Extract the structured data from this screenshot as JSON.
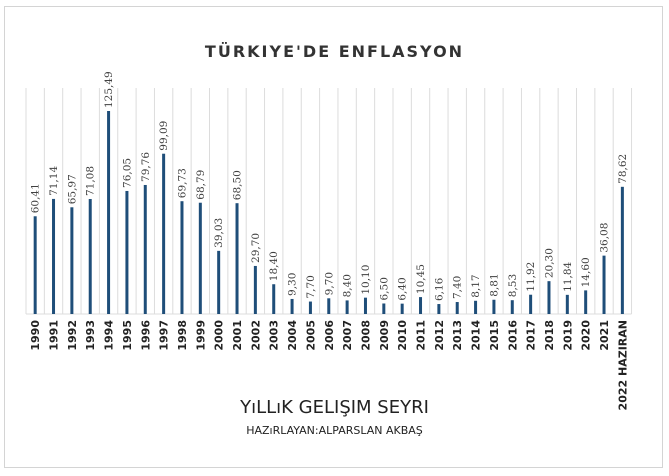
{
  "chart_data": {
    "type": "bar",
    "title": "TÜRKIYE'DE ENFLASYON",
    "categories": [
      "1990",
      "1991",
      "1992",
      "1993",
      "1994",
      "1995",
      "1996",
      "1997",
      "1998",
      "1999",
      "2000",
      "2001",
      "2002",
      "2003",
      "2004",
      "2005",
      "2006",
      "2007",
      "2008",
      "2009",
      "2010",
      "2011",
      "2012",
      "2013",
      "2014",
      "2015",
      "2016",
      "2017",
      "2018",
      "2019",
      "2020",
      "2021",
      "2022 HAZIRAN"
    ],
    "values": [
      60.41,
      71.14,
      65.97,
      71.08,
      125.49,
      76.05,
      79.76,
      99.09,
      69.73,
      68.79,
      39.03,
      68.5,
      29.7,
      18.4,
      9.3,
      7.7,
      9.7,
      8.4,
      10.1,
      6.5,
      6.4,
      10.45,
      6.16,
      7.4,
      8.17,
      8.81,
      8.53,
      11.92,
      20.3,
      11.84,
      14.6,
      36.08,
      78.62
    ],
    "value_labels": [
      "60,41",
      "71,14",
      "65,97",
      "71,08",
      "125,49",
      "76,05",
      "79,76",
      "99,09",
      "69,73",
      "68,79",
      "39,03",
      "68,50",
      "29,70",
      "18,40",
      "9,30",
      "7,70",
      "9,70",
      "8,40",
      "10,10",
      "6,50",
      "6,40",
      "10,45",
      "6,16",
      "7,40",
      "8,17",
      "8,81",
      "8,53",
      "11,92",
      "20,30",
      "11,84",
      "14,60",
      "36,08",
      "78,62"
    ],
    "ylim": [
      0,
      125.49
    ],
    "grid": true,
    "bar_color": "#1f4e79"
  },
  "footer": {
    "title": "YıLLıK GELIŞIM SEYRI",
    "credit": "HAZıRLAYAN:ALPARSLAN AKBAŞ"
  }
}
